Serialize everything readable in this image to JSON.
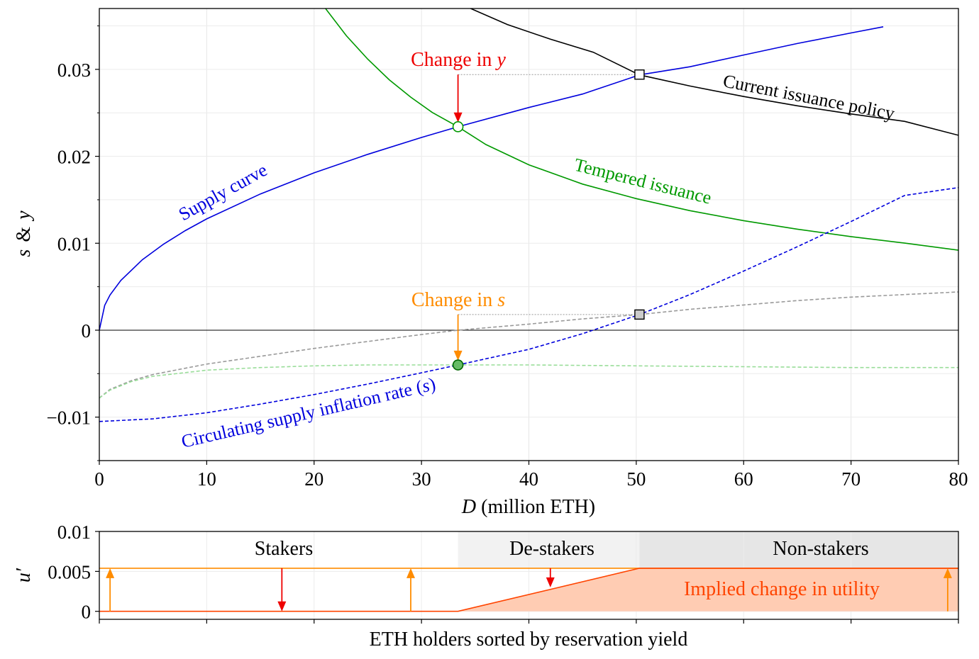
{
  "chart_data": [
    {
      "type": "line",
      "xlabel_italic": "D",
      "xlabel_rest": " (million ETH)",
      "ylabel_parts": [
        "s",
        "&",
        "y"
      ],
      "xlim": [
        0,
        80
      ],
      "ylim": [
        -0.015,
        0.037
      ],
      "x_ticks": [
        0,
        10,
        20,
        30,
        40,
        50,
        60,
        70,
        80
      ],
      "x_tick_labels": [
        "0",
        "10",
        "20",
        "30",
        "40",
        "50",
        "60",
        "70",
        "80"
      ],
      "y_ticks": [
        -0.01,
        0,
        0.01,
        0.02,
        0.03
      ],
      "y_tick_labels": [
        "−0.01",
        "0",
        "0.01",
        "0.02",
        "0.03"
      ],
      "grid": true,
      "series": [
        {
          "name": "Supply curve",
          "color": "#0000dd",
          "style": "solid",
          "x": [
            0,
            0.5,
            1,
            2,
            4,
            6,
            8,
            10,
            15,
            20,
            25,
            30,
            33.4,
            40,
            45,
            50.3,
            55,
            60,
            65,
            70,
            73
          ],
          "y": [
            0,
            0.00286,
            0.00405,
            0.00572,
            0.0081,
            0.00991,
            0.01145,
            0.0128,
            0.01567,
            0.0181,
            0.02023,
            0.02217,
            0.0234,
            0.02561,
            0.02716,
            0.02936,
            0.0303,
            0.03165,
            0.03297,
            0.03419,
            0.0349
          ]
        },
        {
          "name": "Current issuance policy",
          "color": "#000000",
          "style": "solid",
          "x": [
            34.4,
            38,
            42,
            46,
            50.3,
            55,
            60,
            65,
            70,
            75,
            80
          ],
          "y": [
            0.0371,
            0.03516,
            0.03347,
            0.03197,
            0.02936,
            0.02808,
            0.02688,
            0.02581,
            0.02487,
            0.02402,
            0.02242
          ]
        },
        {
          "name": "Tempered issuance",
          "color": "#009900",
          "style": "solid",
          "x": [
            21,
            23,
            25,
            27,
            29,
            31,
            33.4,
            36,
            40,
            45,
            50,
            55,
            60,
            65,
            70,
            75,
            80
          ],
          "y": [
            0.0371,
            0.03387,
            0.03117,
            0.0288,
            0.0268,
            0.02504,
            0.0234,
            0.02135,
            0.01902,
            0.0168,
            0.01513,
            0.01375,
            0.0126,
            0.01162,
            0.01076,
            0.01001,
            0.0092
          ]
        },
        {
          "name": "Circulating supply inflation rate (s)",
          "color": "#0000dd",
          "style": "dashed",
          "x": [
            0,
            5,
            10,
            15,
            20,
            25,
            30,
            33.4,
            40,
            45,
            50.3,
            55,
            60,
            65,
            70,
            75,
            80
          ],
          "y": [
            -0.0105,
            -0.0102,
            -0.0095,
            -0.0085,
            -0.0074,
            -0.0062,
            -0.0049,
            -0.004,
            -0.0022,
            -0.0004,
            0.0018,
            0.0041,
            0.0068,
            0.0096,
            0.0125,
            0.0155,
            0.0164
          ]
        },
        {
          "name": "Current issuance s",
          "color": "#999999",
          "style": "dashed",
          "x": [
            0,
            1,
            3,
            5,
            10,
            15,
            20,
            25,
            30,
            33.4,
            40,
            45,
            50.3,
            55,
            60,
            65,
            70,
            75,
            80
          ],
          "y": [
            -0.0078,
            -0.0068,
            -0.0058,
            -0.0051,
            -0.0039,
            -0.003,
            -0.0021,
            -0.0013,
            -0.0005,
            0.0,
            0.0007,
            0.0013,
            0.0018,
            0.0024,
            0.0029,
            0.0034,
            0.0038,
            0.0041,
            0.0044
          ]
        },
        {
          "name": "Tempered issuance s",
          "color": "#99dd99",
          "style": "dashed",
          "x": [
            0,
            1,
            3,
            5,
            10,
            15,
            20,
            25,
            30,
            33.4,
            40,
            50,
            60,
            70,
            80
          ],
          "y": [
            -0.0078,
            -0.0069,
            -0.0059,
            -0.0053,
            -0.0046,
            -0.0043,
            -0.0041,
            -0.004,
            -0.004,
            -0.004,
            -0.004,
            -0.0041,
            -0.0042,
            -0.0043,
            -0.0043
          ]
        }
      ],
      "points": [
        {
          "name": "tempered equilibrium",
          "x": 33.4,
          "y": 0.0234,
          "marker": "circle",
          "fill": "#ffffff",
          "stroke": "#009900"
        },
        {
          "name": "current equilibrium",
          "x": 50.3,
          "y": 0.0294,
          "marker": "square",
          "fill": "#ffffff",
          "stroke": "#000000"
        },
        {
          "name": "current s",
          "x": 50.3,
          "y": 0.0018,
          "marker": "square",
          "fill": "#cccccc",
          "stroke": "#000000"
        },
        {
          "name": "tempered s",
          "x": 33.4,
          "y": -0.004,
          "marker": "circle",
          "fill": "#66bb66",
          "stroke": "#006600"
        }
      ],
      "annotations": [
        {
          "key": "change_y",
          "prefix": "Change in ",
          "var": "y",
          "color": "#ee0000",
          "x": 33.4,
          "y": 0.0316,
          "arrow_from": [
            33.4,
            0.0294
          ],
          "arrow_to": [
            33.4,
            0.0239
          ]
        },
        {
          "key": "change_s",
          "prefix": "Change in ",
          "var": "s",
          "color": "#ff8c00",
          "x": 33.4,
          "y": 0.0036,
          "arrow_from": [
            33.4,
            0.0018
          ],
          "arrow_to": [
            33.4,
            -0.0035
          ]
        }
      ],
      "curve_labels": {
        "supply": "Supply curve",
        "current": "Current issuance policy",
        "tempered": "Tempered issuance",
        "circ_prefix": "Circulating supply inflation rate (",
        "circ_var": "s",
        "circ_suffix": ")"
      }
    },
    {
      "type": "area",
      "ylabel": "u′",
      "xlabel": "ETH holders sorted by reservation yield",
      "xlim": [
        0,
        80
      ],
      "ylim": [
        -0.001,
        0.01
      ],
      "y_ticks": [
        0,
        0.005,
        0.01
      ],
      "y_tick_labels": [
        "0",
        "0.005",
        "0.01"
      ],
      "x_ticks": [
        0,
        10,
        20,
        30,
        40,
        50,
        60,
        70,
        80
      ],
      "regions": [
        {
          "label": "Stakers",
          "from": 0,
          "to": 33.4,
          "color": "#ffffff"
        },
        {
          "label": "De-stakers",
          "from": 33.4,
          "to": 50.3,
          "color": "#f2f2f2"
        },
        {
          "label": "Non-stakers",
          "from": 50.3,
          "to": 80,
          "color": "#e6e6e6"
        }
      ],
      "series": [
        {
          "name": "current marginal utility",
          "color": "#ff8c00",
          "x": [
            0,
            80
          ],
          "y": [
            0.0054,
            0.0054
          ]
        },
        {
          "name": "implied change",
          "color": "#ff4400",
          "x": [
            0,
            33.4,
            50.3,
            80
          ],
          "y": [
            0,
            0,
            0.0054,
            0.0054
          ]
        }
      ],
      "fill_label": "Implied change in utility",
      "fill_color": "#ffccb3",
      "arrows": [
        {
          "x": 1,
          "from": 0,
          "to": 0.0054,
          "color": "#ff8c00"
        },
        {
          "x": 17,
          "from": 0.0054,
          "to": 0,
          "color": "#ee0000"
        },
        {
          "x": 29,
          "from": 0,
          "to": 0.0054,
          "color": "#ff8c00"
        },
        {
          "x": 42,
          "from": 0.0054,
          "to": 0.003,
          "color": "#ee0000"
        },
        {
          "x": 79,
          "from": 0,
          "to": 0.0054,
          "color": "#ff8c00"
        }
      ]
    }
  ]
}
